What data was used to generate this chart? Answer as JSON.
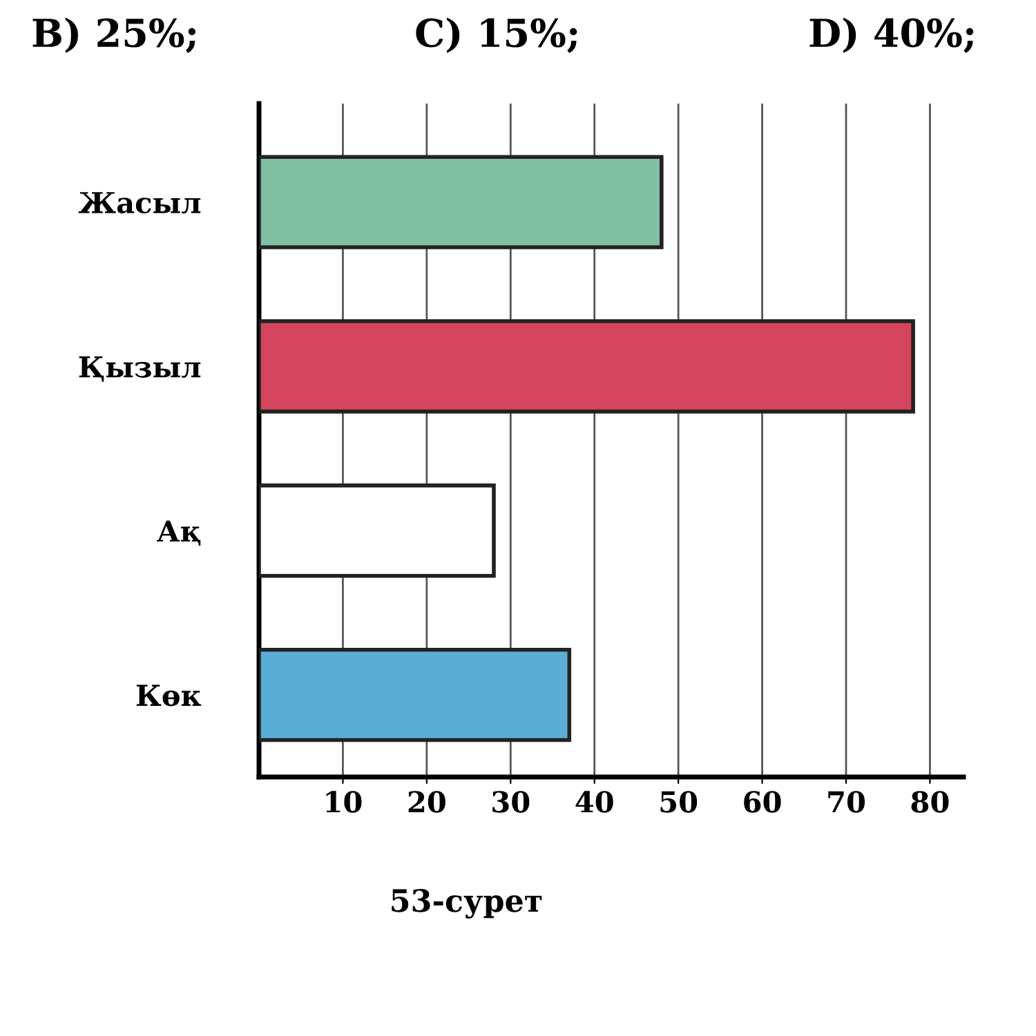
{
  "chart_data": {
    "type": "bar",
    "orientation": "horizontal",
    "categories": [
      "Жасыл",
      "Қызыл",
      "Ақ",
      "Көк"
    ],
    "values": [
      48,
      78,
      28,
      37
    ],
    "colors": [
      "#7fbfa4",
      "#d2455c",
      "#ffffff",
      "#5aaed6"
    ],
    "xlim": [
      0,
      84
    ],
    "xticks": [
      10,
      20,
      30,
      40,
      50,
      60,
      70,
      80
    ],
    "grid": "x",
    "annotations": [
      "B) 25%;",
      "C) 15%;",
      "D) 40%;",
      "53-сурет"
    ]
  }
}
